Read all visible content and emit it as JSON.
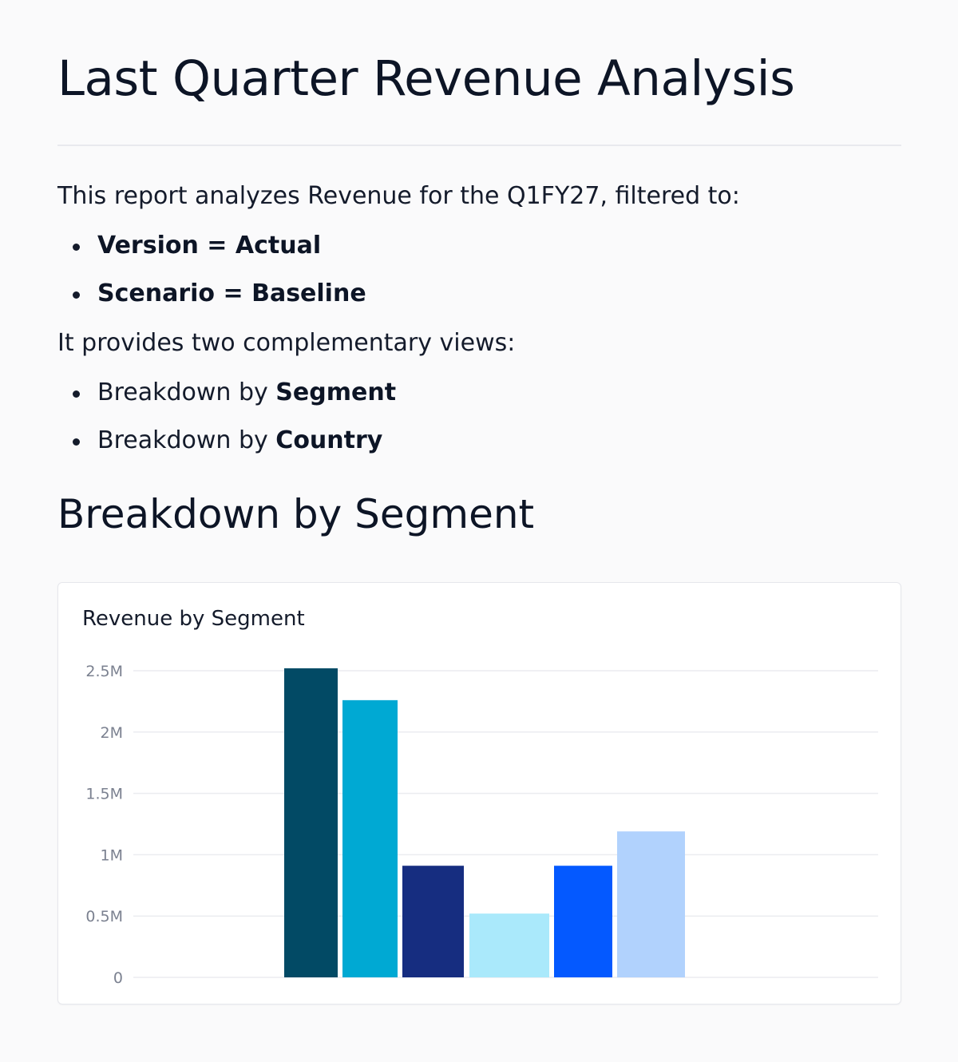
{
  "report": {
    "title": "Last Quarter Revenue Analysis",
    "intro": "This report analyzes Revenue for the Q1FY27, filtered to:",
    "filters": [
      {
        "label": "Version",
        "operator": "=",
        "value": "Actual"
      },
      {
        "label": "Scenario",
        "operator": "=",
        "value": "Baseline"
      }
    ],
    "views_intro": "It provides two complementary views:",
    "views": [
      {
        "prefix": "Breakdown by ",
        "emphasis": "Segment"
      },
      {
        "prefix": "Breakdown by ",
        "emphasis": "Country"
      }
    ]
  },
  "section": {
    "title": "Breakdown by Segment"
  },
  "chart_data": {
    "type": "bar",
    "title": "Revenue by Segment",
    "xlabel": "",
    "ylabel": "",
    "ylim": [
      0,
      2500000
    ],
    "yticks": [
      0,
      500000,
      1000000,
      1500000,
      2000000,
      2500000
    ],
    "ytick_labels": [
      "0",
      "0.5M",
      "1M",
      "1.5M",
      "2M",
      "2.5M"
    ],
    "grid": true,
    "legend": "none",
    "values": [
      2520000,
      2260000,
      910000,
      520000,
      910000,
      1190000
    ],
    "colors": [
      "#024a65",
      "#00a9d3",
      "#162d80",
      "#aae9fb",
      "#0459ff",
      "#b1d2fd"
    ]
  }
}
